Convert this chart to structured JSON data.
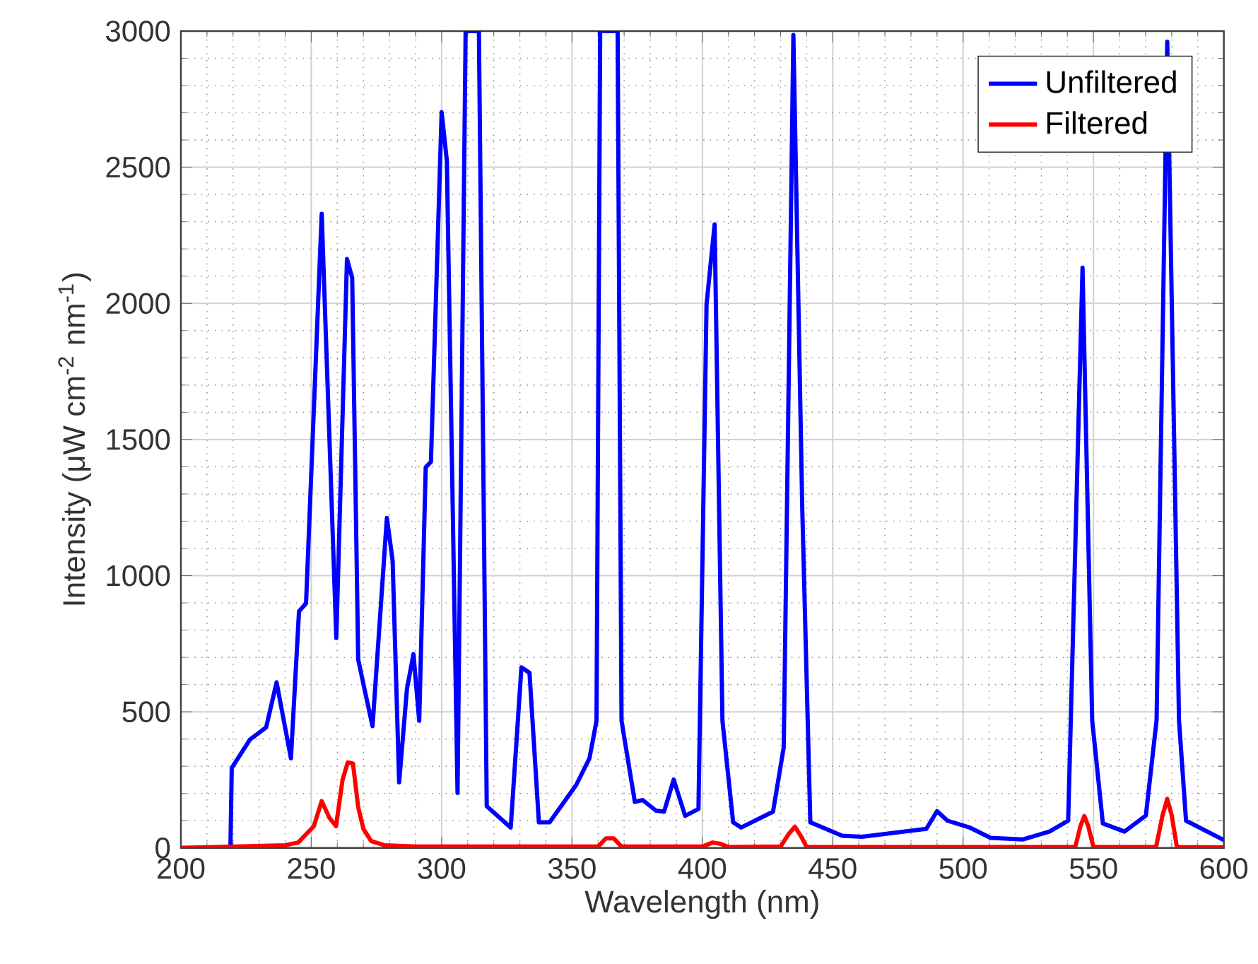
{
  "chart_data": {
    "type": "line",
    "xlabel": "Wavelength (nm)",
    "ylabel": "Intensity (μW cm$^{-2}$ nm$^{-1}$)",
    "xlim": [
      200,
      600
    ],
    "ylim": [
      0,
      3000
    ],
    "xticks": [
      200,
      250,
      300,
      350,
      400,
      450,
      500,
      550,
      600
    ],
    "yticks": [
      0,
      500,
      1000,
      1500,
      2000,
      2500,
      3000
    ],
    "grid": true,
    "legend": "top right",
    "line_style": "solid",
    "marker": "none",
    "series": [
      {
        "name": "Unfiltered",
        "color": "#0000ff",
        "x": [
          200,
          219,
          219.5,
          226.5,
          232.7,
          236.7,
          242.2,
          245.3,
          248,
          254,
          259.6,
          263.7,
          265.7,
          268,
          270.4,
          273.5,
          279,
          281.2,
          283.7,
          286.7,
          289.2,
          291.4,
          293.9,
          295.9,
          300,
          302,
          306.1,
          309.2,
          314.3,
          317.3,
          326.5,
          330.6,
          333.7,
          337.3,
          341.4,
          351.6,
          356.7,
          359.4,
          360.8,
          367.5,
          369,
          374.1,
          377.1,
          382.2,
          385.3,
          389,
          393.4,
          398.5,
          401.6,
          404.7,
          407.7,
          411.8,
          414.9,
          427.1,
          431.2,
          434.9,
          438.3,
          441.4,
          453.6,
          461.2,
          485.9,
          490,
          494,
          502.3,
          510.5,
          522.8,
          533.1,
          540.3,
          545.8,
          549.5,
          553.6,
          561.9,
          570.1,
          574.2,
          578.3,
          582.8,
          585.5,
          600
        ],
        "values": [
          0,
          0,
          294,
          398,
          443,
          608,
          329,
          869,
          898,
          2329,
          771,
          2163,
          2094,
          692,
          584,
          447,
          1212,
          1055,
          241,
          584,
          712,
          467,
          1398,
          1418,
          2702,
          2525,
          202,
          3000,
          3000,
          153,
          75,
          663,
          643,
          94,
          94,
          231,
          329,
          467,
          3000,
          3000,
          467,
          169,
          176,
          137,
          133,
          251,
          118,
          143,
          1996,
          2290,
          467,
          94,
          75,
          133,
          369,
          2986,
          1251,
          94,
          45,
          41,
          70,
          135,
          100,
          76,
          37,
          31,
          60,
          100,
          2131,
          469,
          90,
          60,
          119,
          469,
          2961,
          469,
          100,
          29
        ]
      },
      {
        "name": "Filtered",
        "color": "#ff0000",
        "x": [
          200,
          240,
          245,
          248,
          251,
          254,
          257,
          259.5,
          262,
          264,
          266,
          268,
          270,
          273,
          278,
          290,
          360,
          363,
          366,
          369,
          400,
          404,
          407,
          410,
          430,
          433,
          435.5,
          438,
          440,
          543,
          545,
          546.5,
          548,
          550,
          574,
          576.5,
          578.3,
          580,
          582,
          600
        ],
        "values": [
          0,
          10,
          20,
          50,
          80,
          172,
          110,
          80,
          250,
          314,
          310,
          150,
          70,
          25,
          10,
          5,
          5,
          35,
          35,
          5,
          5,
          20,
          15,
          3,
          5,
          50,
          78,
          40,
          3,
          3,
          80,
          117,
          80,
          3,
          3,
          120,
          180,
          120,
          3,
          2
        ]
      }
    ]
  }
}
